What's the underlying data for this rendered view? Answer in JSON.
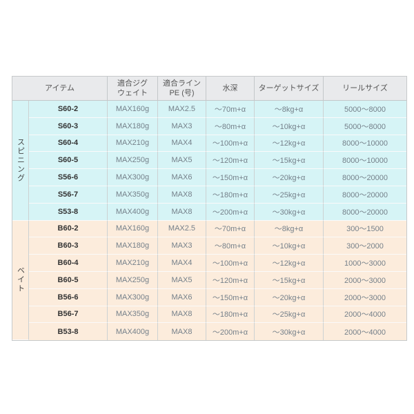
{
  "table": {
    "headers": [
      "アイテム",
      "適合ジグ\nウェイト",
      "適合ライン\nPE (号)",
      "水深",
      "ターゲットサイズ",
      "リールサイズ"
    ],
    "groups": [
      {
        "label": "スピニング",
        "rows": [
          {
            "item": "S60-2",
            "jig": "MAX160g",
            "pe": "MAX2.5",
            "depth": "〜70m+α",
            "target": "〜8kg+α",
            "reel": "5000〜8000"
          },
          {
            "item": "S60-3",
            "jig": "MAX180g",
            "pe": "MAX3",
            "depth": "〜80m+α",
            "target": "〜10kg+α",
            "reel": "5000〜8000"
          },
          {
            "item": "S60-4",
            "jig": "MAX210g",
            "pe": "MAX4",
            "depth": "〜100m+α",
            "target": "〜12kg+α",
            "reel": "8000〜10000"
          },
          {
            "item": "S60-5",
            "jig": "MAX250g",
            "pe": "MAX5",
            "depth": "〜120m+α",
            "target": "〜15kg+α",
            "reel": "8000〜10000"
          },
          {
            "item": "S56-6",
            "jig": "MAX300g",
            "pe": "MAX6",
            "depth": "〜150m+α",
            "target": "〜20kg+α",
            "reel": "8000〜20000"
          },
          {
            "item": "S56-7",
            "jig": "MAX350g",
            "pe": "MAX8",
            "depth": "〜180m+α",
            "target": "〜25kg+α",
            "reel": "8000〜20000"
          },
          {
            "item": "S53-8",
            "jig": "MAX400g",
            "pe": "MAX8",
            "depth": "〜200m+α",
            "target": "〜30kg+α",
            "reel": "8000〜20000"
          }
        ]
      },
      {
        "label": "ベイト",
        "rows": [
          {
            "item": "B60-2",
            "jig": "MAX160g",
            "pe": "MAX2.5",
            "depth": "〜70m+α",
            "target": "〜8kg+α",
            "reel": "300〜1500"
          },
          {
            "item": "B60-3",
            "jig": "MAX180g",
            "pe": "MAX3",
            "depth": "〜80m+α",
            "target": "〜10kg+α",
            "reel": "300〜2000"
          },
          {
            "item": "B60-4",
            "jig": "MAX210g",
            "pe": "MAX4",
            "depth": "〜100m+α",
            "target": "〜12kg+α",
            "reel": "1000〜3000"
          },
          {
            "item": "B60-5",
            "jig": "MAX250g",
            "pe": "MAX5",
            "depth": "〜120m+α",
            "target": "〜15kg+α",
            "reel": "2000〜3000"
          },
          {
            "item": "B56-6",
            "jig": "MAX300g",
            "pe": "MAX6",
            "depth": "〜150m+α",
            "target": "〜20kg+α",
            "reel": "2000〜3000"
          },
          {
            "item": "B56-7",
            "jig": "MAX350g",
            "pe": "MAX8",
            "depth": "〜180m+α",
            "target": "〜25kg+α",
            "reel": "2000〜4000"
          },
          {
            "item": "B53-8",
            "jig": "MAX400g",
            "pe": "MAX8",
            "depth": "〜200m+α",
            "target": "〜30kg+α",
            "reel": "2000〜4000"
          }
        ]
      }
    ]
  },
  "colors": {
    "page_bg": "#ffffff",
    "header_bg": "#e9eaec",
    "header_text": "#555555",
    "header_border": "#c3c7c9",
    "spinning_bg": "#d6f4f6",
    "bait_bg": "#fcecdc",
    "value_text": "#75808a",
    "item_text": "#333333",
    "group_text": "#444444",
    "outer_border": "#c6c9ca",
    "v_border": "#ccd1d2",
    "h_border": "#fafafa"
  }
}
